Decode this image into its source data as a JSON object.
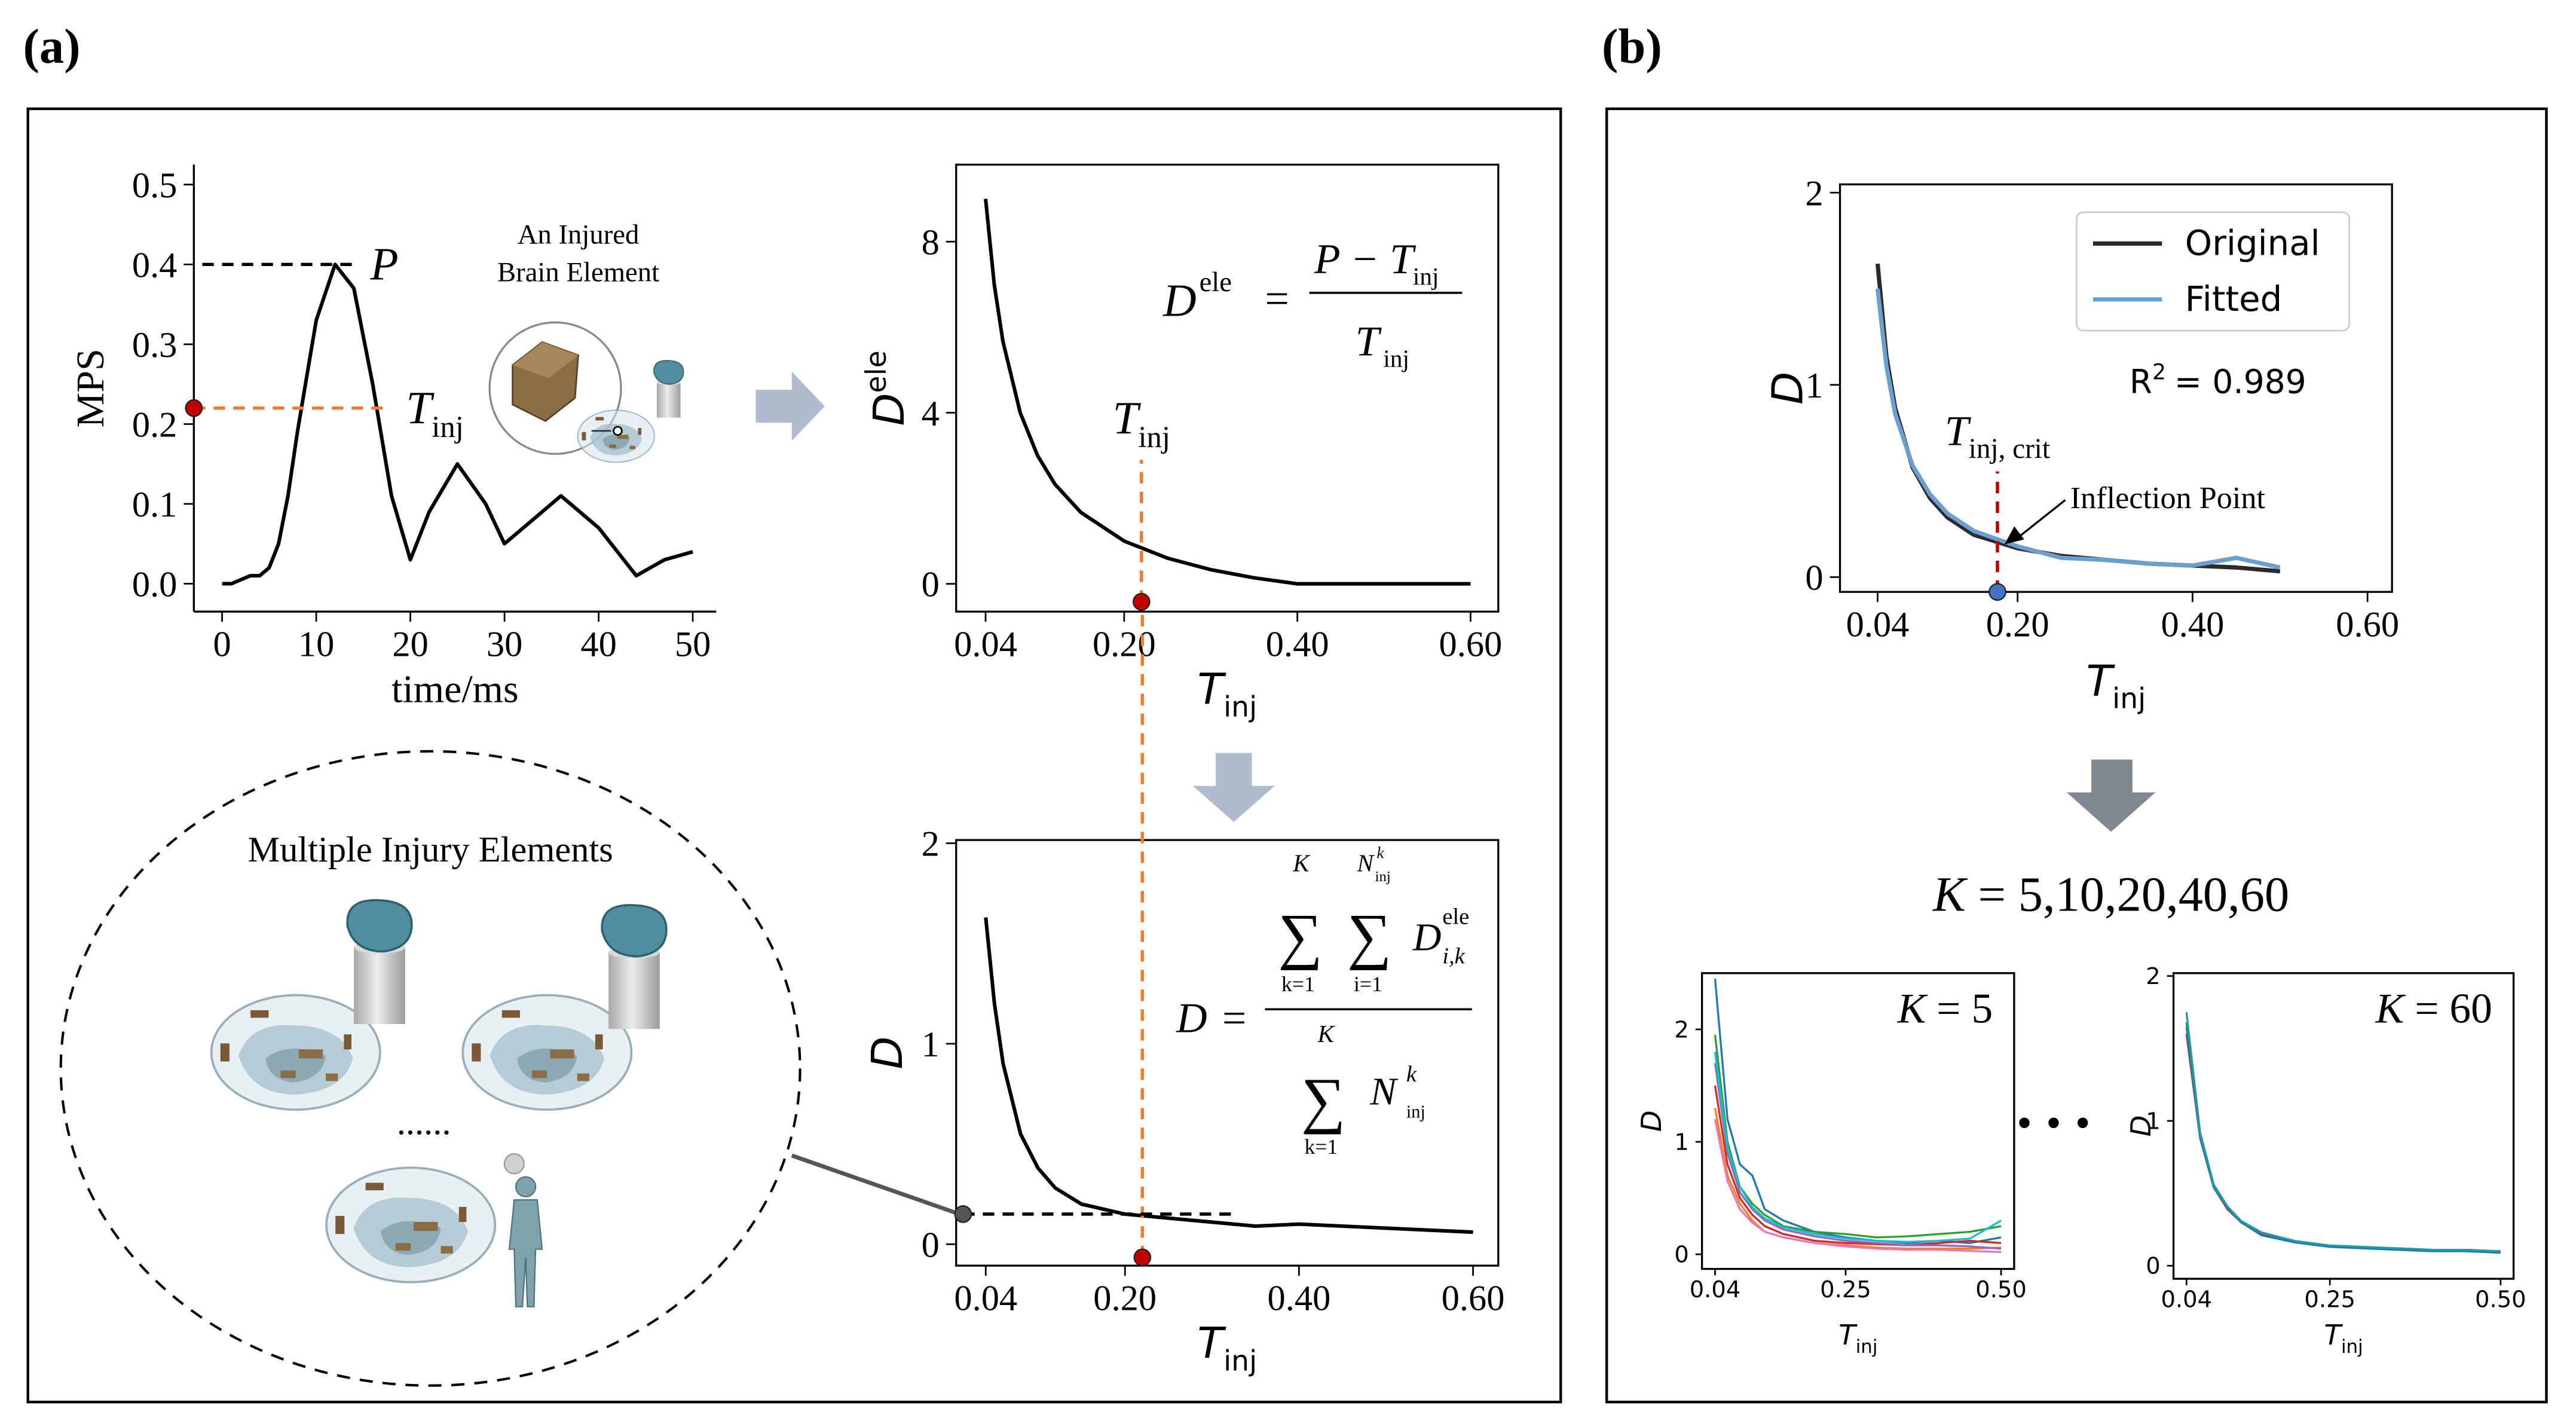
{
  "figure": {
    "panels": [
      "(a)",
      "(b)"
    ],
    "brain_label": [
      "An Injured",
      "Brain Element"
    ],
    "multiple": "Multiple Injury Elements",
    "ellipsis": "......",
    "dots": "• • •",
    "k_list": {
      "main": "K",
      "rest": "= 5,10,20,40,60"
    },
    "formula_ele": {
      "lhs": "D",
      "lhs_sup": "ele",
      "eq": "=",
      "num": "P − T",
      "num_sub": "inj",
      "den": "T",
      "den_sub": "inj"
    },
    "formula_d": {
      "lhs": "D",
      "eq": "=",
      "sum": "∑",
      "upper": "K",
      "k_lower": "k=1",
      "i_lower": "i=1",
      "N": "N",
      "N_sup": "k",
      "N_sub": "inj",
      "term": "D",
      "term_sup": "ele",
      "term_sub": "i,k"
    }
  },
  "chart_data": [
    {
      "type": "line",
      "spines": "left-bottom",
      "xlabel": "time/ms",
      "ylabel": "MPS",
      "xlim": [
        -3,
        52.5
      ],
      "ylim": [
        -0.035,
        0.525
      ],
      "xticks": [
        0,
        10,
        20,
        30,
        40,
        50
      ],
      "yticks": [
        {
          "value": 0,
          "label": "0.0"
        },
        0.1,
        0.2,
        0.3,
        0.4,
        0.5
      ],
      "x": [
        0,
        1,
        2,
        3,
        4,
        5,
        6,
        7,
        8,
        10,
        12,
        14,
        16,
        18,
        20,
        22,
        25,
        28,
        30,
        33,
        36,
        40,
        44,
        47,
        50
      ],
      "series": [
        {
          "color": "#000000",
          "values": [
            0,
            0,
            0.005,
            0.01,
            0.01,
            0.02,
            0.05,
            0.11,
            0.19,
            0.33,
            0.4,
            0.37,
            0.25,
            0.11,
            0.03,
            0.09,
            0.15,
            0.1,
            0.05,
            0.08,
            0.11,
            0.07,
            0.01,
            0.03,
            0.04
          ]
        }
      ],
      "reference_lines": [
        {
          "axis": "y",
          "value": 0.4,
          "from": -2.1,
          "to": 14,
          "color": "#000000",
          "label": {
            "main": "P"
          }
        },
        {
          "axis": "y",
          "value": 0.22,
          "from": -3,
          "to": 17.8,
          "color": "#ed7d31",
          "dot_color": "#c00000",
          "label": {
            "main": "T",
            "sub": "inj"
          }
        }
      ]
    },
    {
      "type": "line",
      "spines": "all",
      "xlabel": {
        "main": "T",
        "sub": "inj"
      },
      "ylabel": {
        "main": "D",
        "sup": "ele"
      },
      "xlim": [
        0.006,
        0.632
      ],
      "ylim": [
        -0.65,
        9.8
      ],
      "xticks": [
        0.04,
        {
          "value": 0.2,
          "label": "0.20"
        },
        {
          "value": 0.4,
          "label": "0.40"
        },
        {
          "value": 0.6,
          "label": "0.60"
        }
      ],
      "yticks": [
        0,
        4,
        8
      ],
      "x": [
        0.04,
        0.05,
        0.06,
        0.08,
        0.1,
        0.12,
        0.15,
        0.2,
        0.25,
        0.3,
        0.35,
        0.4,
        0.45,
        0.5,
        0.55,
        0.6
      ],
      "series": [
        {
          "color": "#000000",
          "values": [
            9,
            7,
            5.67,
            4,
            3,
            2.33,
            1.67,
            1,
            0.6,
            0.33,
            0.14,
            0,
            0,
            0,
            0,
            0
          ]
        }
      ],
      "reference_lines": [
        {
          "axis": "x",
          "value": 0.22,
          "from": -0.42,
          "to": 2.9,
          "color": "#ed7d31",
          "dot_color": "#c00000",
          "label": {
            "main": "T",
            "sub": "inj"
          }
        }
      ]
    },
    {
      "type": "line",
      "spines": "all",
      "xlabel": {
        "main": "T",
        "sub": "inj"
      },
      "ylabel": {
        "main": "D"
      },
      "xlim": [
        0.006,
        0.629
      ],
      "ylim": [
        -0.107,
        2.016
      ],
      "xticks": [
        0.04,
        {
          "value": 0.2,
          "label": "0.20"
        },
        {
          "value": 0.4,
          "label": "0.40"
        },
        {
          "value": 0.6,
          "label": "0.60"
        }
      ],
      "yticks": [
        0,
        1,
        2
      ],
      "x": [
        0.04,
        0.05,
        0.06,
        0.08,
        0.1,
        0.12,
        0.15,
        0.2,
        0.25,
        0.3,
        0.35,
        0.4,
        0.45,
        0.5,
        0.55,
        0.6
      ],
      "series": [
        {
          "color": "#000000",
          "values": [
            1.63,
            1.2,
            0.9,
            0.55,
            0.38,
            0.28,
            0.2,
            0.15,
            0.13,
            0.11,
            0.09,
            0.1,
            0.09,
            0.08,
            0.07,
            0.06
          ]
        }
      ],
      "reference_lines": [
        {
          "axis": "x",
          "value": 0.22,
          "from": -0.066,
          "to": 3.16,
          "color": "#ed7d31",
          "dot_color": "#c00000"
        },
        {
          "axis": "y",
          "value": 0.15,
          "from": 0.014,
          "to": 0.33,
          "color": "#000000",
          "dot_color": "#555555"
        }
      ]
    },
    {
      "type": "line",
      "spines": "all",
      "xlabel": {
        "main": "T",
        "sub": "inj"
      },
      "ylabel": {
        "main": "D"
      },
      "xlim": [
        -0.003,
        0.628
      ],
      "ylim": [
        -0.077,
        2.043
      ],
      "xticks": [
        0.04,
        {
          "value": 0.2,
          "label": "0.20"
        },
        {
          "value": 0.4,
          "label": "0.40"
        },
        {
          "value": 0.6,
          "label": "0.60"
        }
      ],
      "yticks": [
        0,
        1,
        2
      ],
      "x": [
        0.04,
        0.05,
        0.06,
        0.08,
        0.1,
        0.12,
        0.15,
        0.2,
        0.25,
        0.3,
        0.35,
        0.4,
        0.45,
        0.5
      ],
      "series": [
        {
          "name": "Original",
          "color": "#2b2b2b",
          "values": [
            1.63,
            1.15,
            0.88,
            0.57,
            0.41,
            0.31,
            0.22,
            0.15,
            0.11,
            0.09,
            0.07,
            0.06,
            0.05,
            0.03
          ]
        },
        {
          "name": "Fitted",
          "color": "#6b9fce",
          "values": [
            1.5,
            1.1,
            0.85,
            0.58,
            0.43,
            0.33,
            0.24,
            0.16,
            0.1,
            0.09,
            0.07,
            0.06,
            0.1,
            0.05
          ]
        }
      ],
      "legend": "upper right",
      "note": {
        "main": "R",
        "sup": "2",
        "rest": "= 0.989"
      },
      "reference_lines": [
        {
          "axis": "x",
          "value": 0.177,
          "from": -0.077,
          "to": 0.55,
          "color": "#c00000",
          "dot_color": "#4472c4",
          "label": {
            "main": "T",
            "sub": "inj, crit"
          }
        }
      ],
      "annotations": [
        {
          "text": "Inflection Point",
          "arrow_to": [
            0.185,
            0.17
          ]
        }
      ]
    },
    {
      "type": "line",
      "spines": "all",
      "xlabel": {
        "main": "T",
        "sub": "inj"
      },
      "ylabel": {
        "main": "D"
      },
      "xlim": [
        0.019,
        0.521
      ],
      "ylim": [
        -0.13,
        2.5
      ],
      "xticks": [
        0.04,
        0.25,
        {
          "value": 0.5,
          "label": "0.50"
        }
      ],
      "yticks": [
        0,
        1,
        2
      ],
      "inset_label": {
        "main": "K",
        "rest": "= 5"
      },
      "x": [
        0.04,
        0.06,
        0.08,
        0.1,
        0.12,
        0.15,
        0.2,
        0.25,
        0.3,
        0.35,
        0.4,
        0.45,
        0.5
      ],
      "series": [
        {
          "color": "#1f77b4",
          "values": [
            2.45,
            1.2,
            0.8,
            0.7,
            0.4,
            0.3,
            0.2,
            0.15,
            0.12,
            0.1,
            0.12,
            0.1,
            0.15
          ]
        },
        {
          "color": "#2ca02c",
          "values": [
            1.95,
            1.0,
            0.6,
            0.45,
            0.35,
            0.25,
            0.2,
            0.18,
            0.15,
            0.16,
            0.18,
            0.2,
            0.25
          ]
        },
        {
          "color": "#ff7f0e",
          "values": [
            1.3,
            0.7,
            0.45,
            0.3,
            0.2,
            0.15,
            0.1,
            0.08,
            0.06,
            0.05,
            0.05,
            0.05,
            0.06
          ]
        },
        {
          "color": "#d62728",
          "values": [
            1.5,
            0.8,
            0.5,
            0.35,
            0.25,
            0.18,
            0.12,
            0.1,
            0.09,
            0.08,
            0.1,
            0.12,
            0.1
          ]
        },
        {
          "color": "#9467bd",
          "values": [
            1.7,
            0.9,
            0.55,
            0.4,
            0.3,
            0.22,
            0.16,
            0.12,
            0.1,
            0.08,
            0.08,
            0.07,
            0.05
          ]
        },
        {
          "color": "#e377c2",
          "values": [
            1.2,
            0.65,
            0.4,
            0.28,
            0.2,
            0.15,
            0.1,
            0.07,
            0.05,
            0.04,
            0.04,
            0.03,
            0.02
          ]
        },
        {
          "color": "#17becf",
          "values": [
            1.8,
            0.95,
            0.6,
            0.42,
            0.32,
            0.24,
            0.18,
            0.14,
            0.12,
            0.11,
            0.12,
            0.14,
            0.3
          ]
        }
      ]
    },
    {
      "type": "line",
      "spines": "all",
      "xlabel": {
        "main": "T",
        "sub": "inj"
      },
      "ylabel": {
        "main": "D"
      },
      "xlim": [
        0.021,
        0.519
      ],
      "ylim": [
        -0.09,
        2.02
      ],
      "xticks": [
        0.04,
        0.25,
        {
          "value": 0.5,
          "label": "0.50"
        }
      ],
      "yticks": [
        0,
        1,
        2
      ],
      "inset_label": {
        "main": "K",
        "rest": "= 60"
      },
      "x": [
        0.04,
        0.06,
        0.08,
        0.1,
        0.12,
        0.15,
        0.2,
        0.25,
        0.3,
        0.35,
        0.4,
        0.45,
        0.5
      ],
      "series": [
        {
          "color": "#2ca02c",
          "values": [
            1.68,
            0.9,
            0.55,
            0.4,
            0.3,
            0.22,
            0.17,
            0.14,
            0.13,
            0.12,
            0.11,
            0.1,
            0.09
          ]
        },
        {
          "color": "#d62728",
          "values": [
            1.6,
            0.88,
            0.54,
            0.39,
            0.3,
            0.22,
            0.16,
            0.14,
            0.12,
            0.12,
            0.11,
            0.11,
            0.1
          ]
        },
        {
          "color": "#1f77b4",
          "values": [
            1.65,
            0.89,
            0.54,
            0.4,
            0.3,
            0.21,
            0.16,
            0.13,
            0.12,
            0.11,
            0.1,
            0.1,
            0.09
          ]
        },
        {
          "color": "#1f9e9e",
          "values": [
            1.75,
            0.92,
            0.56,
            0.41,
            0.31,
            0.23,
            0.17,
            0.14,
            0.13,
            0.12,
            0.11,
            0.11,
            0.1
          ]
        }
      ]
    }
  ]
}
